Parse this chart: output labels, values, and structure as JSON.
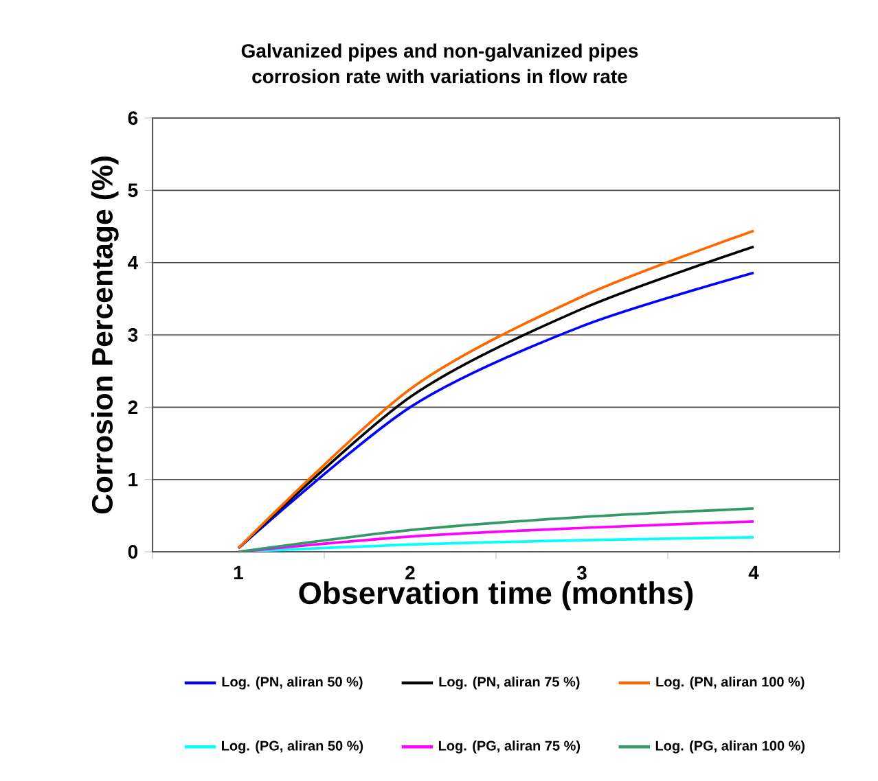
{
  "chart_data": {
    "type": "line",
    "title": "Galvanized pipes and non-galvanized pipes\ncorrosion rate with variations in flow rate",
    "xlabel": "Observation time (months)",
    "ylabel": "Corrosion Percentage (%)",
    "categories": [
      "1",
      "2",
      "3",
      "4"
    ],
    "ylim": [
      0,
      6
    ],
    "yticks": [
      0,
      1,
      2,
      3,
      4,
      5,
      6
    ],
    "grid": "y",
    "legend": "bottom",
    "marker": "none",
    "line_style": "solid",
    "series": [
      {
        "name": "Log. (PN, aliran 50 %)",
        "color": "#0000ff",
        "values": [
          0.05,
          2.0,
          3.12,
          3.86
        ]
      },
      {
        "name": "Log. (PN, aliran 75 %)",
        "color": "#000000",
        "values": [
          0.05,
          2.14,
          3.36,
          4.22
        ]
      },
      {
        "name": "Log. (PN, aliran 100 %)",
        "color": "#ff6600",
        "values": [
          0.05,
          2.25,
          3.53,
          4.44
        ]
      },
      {
        "name": "Log. (PG, aliran 50 %)",
        "color": "#00ffff",
        "values": [
          0,
          0.1,
          0.16,
          0.2
        ]
      },
      {
        "name": "Log. (PG, aliran 75 %)",
        "color": "#ff00ff",
        "values": [
          0,
          0.21,
          0.33,
          0.42
        ]
      },
      {
        "name": "Log. (PG, aliran 100 %)",
        "color": "#339966",
        "values": [
          0,
          0.3,
          0.48,
          0.6
        ]
      }
    ]
  }
}
